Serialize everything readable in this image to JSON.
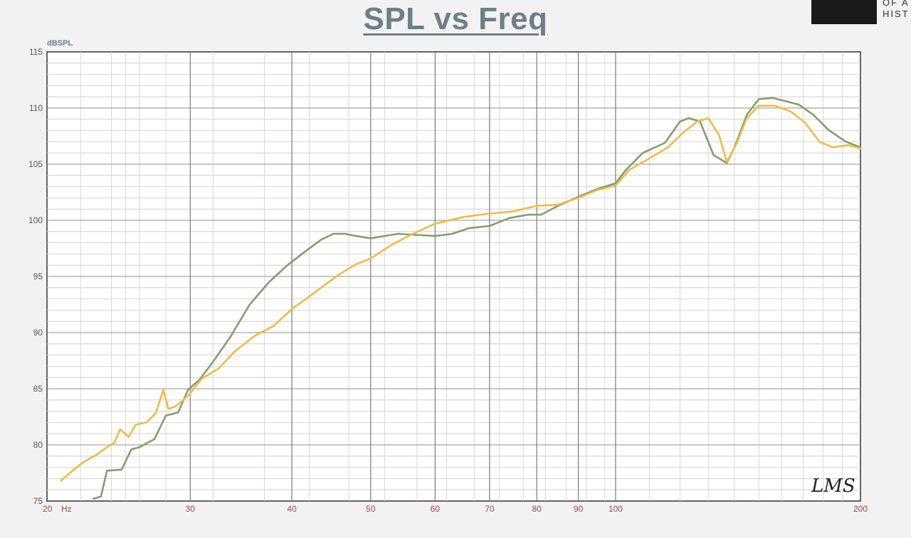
{
  "page": {
    "title": "SPL vs Freq",
    "watermark": "LMS",
    "logo_text": "OF A\nHIST"
  },
  "colors": {
    "series_green": "#8a9a72",
    "series_yellow": "#edbb4b",
    "grid": "#8f8f8f",
    "plot_bg": "#ffffff",
    "title": "#6e7f86"
  },
  "chart_data": {
    "type": "line",
    "title": "SPL vs Freq",
    "xlabel": "Hz",
    "ylabel": "dBSPL",
    "x_scale": "log",
    "xlim": [
      20,
      200
    ],
    "ylim": [
      75,
      115
    ],
    "grid": true,
    "x_tick_labels": [
      "20",
      "30",
      "40",
      "50",
      "60",
      "70",
      "80",
      "90",
      "100",
      "200"
    ],
    "x_tick_values": [
      20,
      30,
      40,
      50,
      60,
      70,
      80,
      90,
      100,
      200
    ],
    "y_tick_labels": [
      "75",
      "80",
      "85",
      "90",
      "95",
      "100",
      "105",
      "110",
      "115"
    ],
    "y_tick_values": [
      75,
      80,
      85,
      90,
      95,
      100,
      105,
      110,
      115
    ],
    "series": [
      {
        "color": "#8a9a72",
        "x": [
          22.8,
          23.3,
          23.7,
          24.7,
          25.4,
          26,
          26.6,
          27.1,
          28,
          29,
          29.8,
          30.8,
          32,
          33.6,
          35.5,
          37.5,
          39.5,
          41.5,
          43.5,
          45,
          46.5,
          48,
          50,
          52,
          54,
          57,
          60,
          63,
          66,
          70,
          74,
          78,
          81,
          85,
          90,
          95,
          100,
          103,
          108,
          115,
          120,
          123,
          127,
          132,
          137,
          140,
          145,
          150,
          156,
          162,
          168,
          175,
          183,
          192,
          200
        ],
        "y": [
          75.2,
          75.4,
          77.7,
          77.8,
          79.6,
          79.8,
          80.2,
          80.5,
          82.6,
          82.9,
          84.9,
          85.8,
          87.4,
          89.6,
          92.5,
          94.5,
          96,
          97.2,
          98.3,
          98.8,
          98.8,
          98.6,
          98.4,
          98.6,
          98.8,
          98.7,
          98.6,
          98.8,
          99.3,
          99.5,
          100.2,
          100.5,
          100.5,
          101.3,
          102.1,
          102.8,
          103.3,
          104.5,
          106,
          106.9,
          108.8,
          109.1,
          108.8,
          105.8,
          105.1,
          106.5,
          109.4,
          110.8,
          110.9,
          110.6,
          110.3,
          109.4,
          108,
          107,
          106.5
        ]
      },
      {
        "color": "#edbb4b",
        "x": [
          20.8,
          21.5,
          22.2,
          23,
          23.6,
          24.2,
          24.6,
          25.2,
          25.7,
          26.5,
          27.2,
          27.8,
          28.2,
          28.7,
          29.2,
          30,
          31,
          32.5,
          34,
          36,
          38,
          40,
          42,
          44,
          46,
          48,
          50,
          53,
          56,
          60,
          65,
          70,
          75,
          80,
          85,
          90,
          95,
          100,
          104,
          110,
          116,
          121,
          126,
          130,
          134,
          137,
          141,
          145,
          150,
          157,
          164,
          171,
          178,
          185,
          193,
          200
        ],
        "y": [
          76.8,
          77.7,
          78.5,
          79.1,
          79.7,
          80.2,
          81.4,
          80.7,
          81.8,
          82,
          82.8,
          84.9,
          83.2,
          83.4,
          83.8,
          84.6,
          85.9,
          86.8,
          88.3,
          89.7,
          90.6,
          92.1,
          93.2,
          94.3,
          95.3,
          96.1,
          96.6,
          97.8,
          98.7,
          99.7,
          100.3,
          100.6,
          100.8,
          101.3,
          101.4,
          102,
          102.7,
          103.1,
          104.5,
          105.5,
          106.5,
          107.8,
          108.8,
          109.1,
          107.6,
          105.2,
          106.9,
          109.1,
          110.2,
          110.2,
          109.7,
          108.7,
          107,
          106.5,
          106.7,
          106.4
        ]
      }
    ]
  }
}
